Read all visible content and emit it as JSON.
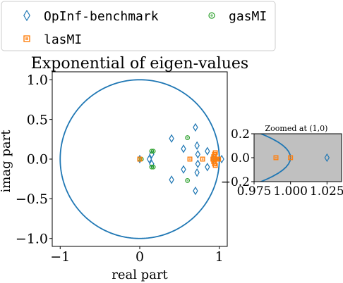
{
  "legend": {
    "entries": [
      {
        "label": "OpInf-benchmark",
        "marker": "thin-diamond",
        "color": "#1f77b4"
      },
      {
        "label": "gasMI",
        "marker": "circle",
        "color": "#2ca02c"
      },
      {
        "label": "lasMI",
        "marker": "square",
        "color": "#ff7f0e"
      }
    ]
  },
  "chart_data": [
    {
      "type": "scatter",
      "title": "Exponential of eigen-values",
      "xlabel": "real part",
      "ylabel": "imag part",
      "xlim": [
        -1.1,
        1.1
      ],
      "ylim": [
        -1.1,
        1.1
      ],
      "xticks": [
        {
          "v": -1,
          "label": "−1"
        },
        {
          "v": 0,
          "label": "0"
        },
        {
          "v": 1,
          "label": "1"
        }
      ],
      "yticks": [
        {
          "v": 1.0,
          "label": "1.0"
        },
        {
          "v": 0.5,
          "label": "0.5"
        },
        {
          "v": 0.0,
          "label": "0.0"
        },
        {
          "v": -0.5,
          "label": "−0.5"
        },
        {
          "v": -1.0,
          "label": "−1.0"
        }
      ],
      "unit_circle": {
        "color": "#1f77b4"
      },
      "series": [
        {
          "name": "OpInf-benchmark",
          "marker": "thin-diamond",
          "color": "#1f77b4",
          "points": [
            [
              0.0,
              0.0
            ],
            [
              0.12,
              0.0
            ],
            [
              0.15,
              0.06
            ],
            [
              0.15,
              -0.06
            ],
            [
              0.4,
              0.26
            ],
            [
              0.4,
              -0.26
            ],
            [
              0.55,
              0.13
            ],
            [
              0.55,
              -0.13
            ],
            [
              0.7,
              0.4
            ],
            [
              0.7,
              -0.4
            ],
            [
              0.73,
              0.06
            ],
            [
              0.73,
              -0.06
            ],
            [
              0.72,
              0.17
            ],
            [
              0.72,
              -0.17
            ],
            [
              0.85,
              0.1
            ],
            [
              0.85,
              -0.1
            ],
            [
              0.93,
              0.0
            ],
            [
              1.03,
              0.0
            ]
          ]
        },
        {
          "name": "gasMI",
          "marker": "circle",
          "color": "#2ca02c",
          "points": [
            [
              0.0,
              0.0
            ],
            [
              0.02,
              0.0
            ],
            [
              0.15,
              0.1
            ],
            [
              0.15,
              -0.1
            ],
            [
              0.17,
              0.1
            ],
            [
              0.17,
              -0.1
            ],
            [
              0.6,
              0.27
            ],
            [
              0.6,
              -0.27
            ],
            [
              0.95,
              0.0
            ]
          ]
        },
        {
          "name": "lasMI",
          "marker": "square",
          "color": "#ff7f0e",
          "points": [
            [
              0.0,
              0.0
            ],
            [
              0.63,
              0.0
            ],
            [
              0.79,
              0.0
            ],
            [
              0.92,
              0.0
            ],
            [
              0.93,
              0.03
            ],
            [
              0.93,
              -0.03
            ],
            [
              0.94,
              0.06
            ],
            [
              0.94,
              -0.06
            ],
            [
              0.95,
              0.08
            ],
            [
              0.95,
              -0.08
            ],
            [
              0.96,
              0.0
            ],
            [
              0.97,
              0.0
            ],
            [
              0.99,
              0.0
            ]
          ]
        }
      ]
    },
    {
      "type": "scatter",
      "title": "Zoomed at (1,0)",
      "xlim": [
        0.975,
        1.035
      ],
      "ylim": [
        -0.2,
        0.2
      ],
      "background": "#c0c0c0",
      "xticks": [
        {
          "v": 0.975,
          "label": "0.975"
        },
        {
          "v": 1.0,
          "label": "1.000"
        },
        {
          "v": 1.025,
          "label": "1.025"
        }
      ],
      "yticks": [
        {
          "v": 0.2,
          "label": "0.2"
        },
        {
          "v": 0.0,
          "label": "0.0"
        },
        {
          "v": -0.2,
          "label": "−0.2"
        }
      ],
      "unit_circle": {
        "color": "#1f77b4"
      },
      "series": [
        {
          "name": "OpInf-benchmark",
          "marker": "thin-diamond",
          "color": "#1f77b4",
          "points": [
            [
              1.025,
              0.0
            ]
          ]
        },
        {
          "name": "lasMI",
          "marker": "square",
          "color": "#ff7f0e",
          "points": [
            [
              0.99,
              0.0
            ],
            [
              1.0,
              0.0
            ]
          ]
        }
      ]
    }
  ]
}
